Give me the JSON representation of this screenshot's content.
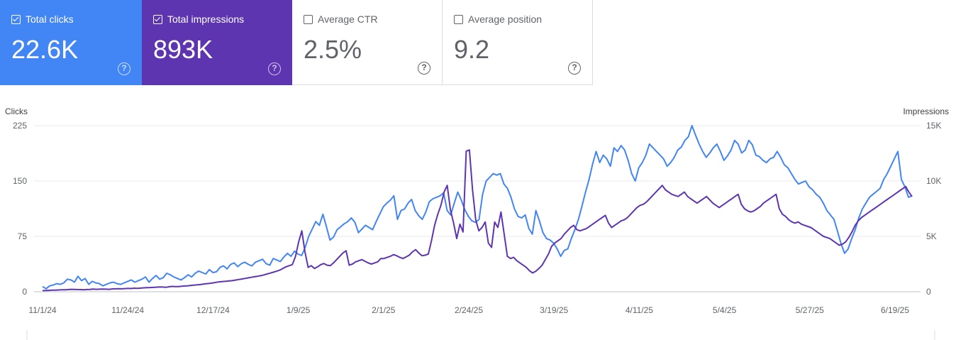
{
  "cards": [
    {
      "label": "Total clicks",
      "value": "22.6K",
      "checked": true
    },
    {
      "label": "Total impressions",
      "value": "893K",
      "checked": true
    },
    {
      "label": "Average CTR",
      "value": "2.5%",
      "checked": false
    },
    {
      "label": "Average position",
      "value": "9.2",
      "checked": false
    }
  ],
  "icons": {
    "checkbox": "checkbox-icon",
    "help": "help-icon"
  },
  "colors": {
    "clicks": "#4285f4",
    "impressions": "#5e35b1",
    "grid": "#e8eaed"
  },
  "chart_data": {
    "type": "line",
    "title": "",
    "y_left_label": "Clicks",
    "y_right_label": "Impressions",
    "y_left_ticks": [
      "0",
      "75",
      "150",
      "225"
    ],
    "y_left_range": [
      0,
      225
    ],
    "y_right_ticks": [
      "0",
      "5K",
      "10K",
      "15K"
    ],
    "y_right_range": [
      0,
      15000
    ],
    "x_ticks": [
      "11/1/24",
      "11/24/24",
      "12/17/24",
      "1/9/25",
      "2/1/25",
      "2/24/25",
      "3/19/25",
      "4/11/25",
      "5/4/25",
      "5/27/25",
      "6/19/25"
    ],
    "grid": true,
    "series": [
      {
        "name": "Clicks",
        "axis": "left",
        "values": [
          7,
          4,
          8,
          9,
          11,
          10,
          12,
          17,
          16,
          13,
          21,
          15,
          18,
          10,
          14,
          12,
          11,
          8,
          10,
          12,
          13,
          11,
          10,
          12,
          14,
          16,
          13,
          15,
          17,
          20,
          13,
          18,
          22,
          17,
          19,
          25,
          23,
          20,
          18,
          16,
          19,
          23,
          20,
          25,
          28,
          26,
          24,
          30,
          26,
          27,
          33,
          35,
          31,
          37,
          39,
          34,
          38,
          40,
          37,
          35,
          40,
          42,
          44,
          38,
          36,
          45,
          43,
          41,
          47,
          52,
          48,
          55,
          51,
          49,
          60,
          75,
          85,
          95,
          90,
          105,
          88,
          70,
          74,
          84,
          88,
          92,
          95,
          100,
          94,
          80,
          85,
          90,
          87,
          84,
          95,
          105,
          115,
          120,
          124,
          130,
          98,
          110,
          112,
          120,
          125,
          110,
          103,
          98,
          108,
          122,
          126,
          128,
          130,
          134,
          110,
          104,
          120,
          135,
          124,
          111,
          102,
          96,
          94,
          98,
          132,
          150,
          155,
          160,
          158,
          160,
          146,
          140,
          128,
          112,
          102,
          100,
          104,
          86,
          78,
          110,
          96,
          80,
          72,
          70,
          66,
          58,
          48,
          56,
          58,
          72,
          84,
          98,
          116,
          135,
          152,
          173,
          190,
          175,
          185,
          180,
          170,
          195,
          190,
          198,
          192,
          178,
          160,
          150,
          168,
          175,
          185,
          200,
          195,
          190,
          185,
          180,
          170,
          175,
          182,
          192,
          196,
          205,
          210,
          225,
          212,
          200,
          190,
          182,
          188,
          195,
          200,
          190,
          178,
          184,
          192,
          205,
          200,
          188,
          192,
          205,
          199,
          185,
          183,
          178,
          175,
          180,
          182,
          190,
          182,
          172,
          168,
          160,
          152,
          146,
          148,
          150,
          142,
          138,
          132,
          128,
          120,
          110,
          104,
          98,
          82,
          65,
          52,
          58,
          72,
          84,
          100,
          112,
          120,
          128,
          132,
          136,
          140,
          152,
          160,
          170,
          180,
          190,
          152,
          142,
          128,
          130
        ]
      },
      {
        "name": "Impressions",
        "axis": "right",
        "values": [
          100,
          110,
          120,
          140,
          150,
          160,
          170,
          180,
          190,
          220,
          210,
          200,
          190,
          180,
          200,
          210,
          240,
          220,
          230,
          240,
          230,
          220,
          250,
          260,
          270,
          260,
          280,
          300,
          290,
          320,
          310,
          330,
          350,
          370,
          380,
          390,
          410,
          430,
          420,
          400,
          450,
          480,
          470,
          460,
          500,
          520,
          540,
          570,
          600,
          620,
          650,
          700,
          730,
          760,
          800,
          850,
          900,
          920,
          950,
          980,
          1000,
          1050,
          1100,
          1150,
          1200,
          1250,
          1300,
          1350,
          1400,
          1450,
          1520,
          1600,
          1680,
          1760,
          1850,
          1950,
          2100,
          2250,
          2350,
          2450,
          3200,
          4500,
          5500,
          3600,
          2200,
          2350,
          2100,
          2250,
          2450,
          2550,
          2400,
          2350,
          2600,
          2900,
          3200,
          3500,
          3700,
          2400,
          2500,
          2700,
          2800,
          2900,
          2750,
          2600,
          2500,
          2600,
          2700,
          3000,
          3000,
          3100,
          3200,
          3350,
          3250,
          3100,
          3000,
          3150,
          3300,
          3600,
          3800,
          3500,
          3250,
          3300,
          3400,
          4600,
          6000,
          7000,
          7800,
          9000,
          9600,
          7400,
          6200,
          4800,
          6100,
          5400,
          12700,
          12800,
          9200,
          6500,
          5500,
          5800,
          6300,
          4400,
          4000,
          6300,
          5800,
          7200,
          5200,
          3200,
          3000,
          3100,
          2800,
          2600,
          2400,
          2200,
          1900,
          1700,
          1850,
          2100,
          2400,
          2900,
          3400,
          4100,
          4400,
          4600,
          4800,
          5200,
          5500,
          5800,
          6000,
          5600,
          5500,
          5600,
          5700,
          5900,
          6100,
          6300,
          6500,
          6700,
          6900,
          6200,
          5800,
          6000,
          6200,
          6400,
          6500,
          6700,
          7000,
          7300,
          7600,
          7800,
          7900,
          8100,
          8400,
          8700,
          9000,
          9300,
          9600,
          9200,
          9000,
          8800,
          8700,
          8600,
          8800,
          9000,
          8600,
          8400,
          8200,
          8000,
          8200,
          8400,
          8600,
          8300,
          8000,
          7800,
          7600,
          7800,
          8000,
          8200,
          8400,
          8600,
          8800,
          7900,
          7500,
          7300,
          7200,
          7300,
          7500,
          7700,
          8000,
          8200,
          8400,
          8600,
          8800,
          7500,
          7000,
          6800,
          6500,
          6300,
          6200,
          6300,
          6100,
          6000,
          5900,
          5800,
          5600,
          5400,
          5200,
          5000,
          4900,
          4800,
          4600,
          4400,
          4200,
          4300,
          4500,
          4900,
          5400,
          6000,
          6400,
          6700,
          6900,
          7100,
          7300,
          7500,
          7700,
          7900,
          8100,
          8300,
          8500,
          8700,
          8900,
          9100,
          9300,
          9500,
          9000,
          8600
        ]
      }
    ]
  }
}
